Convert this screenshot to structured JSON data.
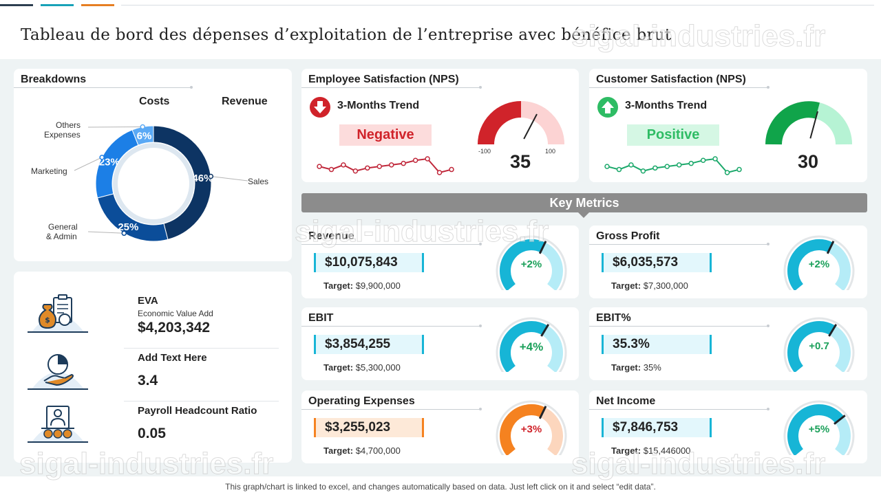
{
  "page_title": "Tableau de bord des dépenses d’exploitation de l’entreprise avec bénéfice brut",
  "colors": {
    "navy": "#1c3b5a",
    "negative": "#d0232a",
    "positive": "#1cb04b",
    "teal": "#17b5d6",
    "orange": "#f58220",
    "gray": "#8c8c8c"
  },
  "top_accent_colors": [
    "#2c3e50",
    "#17a2b8",
    "#e67e22"
  ],
  "breakdowns": {
    "title": "Breakdowns",
    "col_costs": "Costs",
    "col_revenue": "Revenue",
    "labels": {
      "others_l1": "Others",
      "others_l2": "Expenses",
      "marketing": "Marketing",
      "general_l1": "General",
      "general_l2": "& Admin",
      "sales": "Sales"
    }
  },
  "kpis": [
    {
      "label": "EVA",
      "sub": "Economic Value Add",
      "value": "$4,203,342",
      "icon": "money-bag-report-icon"
    },
    {
      "label": "Add Text Here",
      "sub": "",
      "value": "3.4",
      "icon": "hand-pie-chart-icon"
    },
    {
      "label": "Payroll Headcount Ratio",
      "sub": "",
      "value": "0.05",
      "icon": "person-coins-icon"
    }
  ],
  "employee_nps": {
    "title": "Employee Satisfaction (NPS)",
    "trend_label": "3-Months Trend",
    "trend": "Negative",
    "value": "35",
    "scale_min": "-100",
    "scale_max": "100"
  },
  "customer_nps": {
    "title": "Customer Satisfaction (NPS)",
    "trend_label": "3-Months Trend",
    "trend": "Positive",
    "value": "30"
  },
  "key_metrics_title": "Key Metrics",
  "metrics": {
    "revenue": {
      "title": "Revenue",
      "value": "$10,075,843",
      "target_label": "Target:",
      "target": "$9,900,000",
      "change": "+2%",
      "gauge_fraction": 0.6
    },
    "gross_profit": {
      "title": "Gross Profit",
      "value": "$6,035,573",
      "target_label": "Target:",
      "target": "$7,300,000",
      "change": "+2%",
      "gauge_fraction": 0.6
    },
    "ebit": {
      "title": "EBIT",
      "value": "$3,854,255",
      "target_label": "Target:",
      "target": "$5,300,000",
      "change": "+4%",
      "gauge_fraction": 0.62
    },
    "ebit_pct": {
      "title": "EBIT%",
      "value": "35.3%",
      "target_label": "Target:",
      "target": "35%",
      "change": "+0.7",
      "gauge_fraction": 0.62
    },
    "opex": {
      "title": "Operating Expenses",
      "value": "$3,255,023",
      "target_label": "Target:",
      "target": "$4,700,000",
      "change": "+3%",
      "gauge_fraction": 0.6
    },
    "net_income": {
      "title": "Net Income",
      "value": "$7,846,753",
      "target_label": "Target:",
      "target": "$15,446000",
      "change": "+5%",
      "gauge_fraction": 0.7
    }
  },
  "footnote": "This graph/chart is linked to excel, and changes automatically based on data. Just left click on it and select “edit data”.",
  "watermark": "sigal-industries.fr",
  "chart_data": [
    {
      "type": "pie",
      "categories": [
        "Sales",
        "General & Admin",
        "Marketing",
        "Others Expenses"
      ],
      "values": [
        46,
        25,
        23,
        6
      ],
      "value_labels": [
        "46%",
        "25%",
        "23%",
        "6%"
      ],
      "colors": [
        "#0d3463",
        "#0b4d99",
        "#1c7fe6",
        "#5aa9f5"
      ]
    },
    {
      "type": "line",
      "name": "employee-nps-trend",
      "x": [
        1,
        2,
        3,
        4,
        5,
        6,
        7,
        8,
        9,
        10,
        11,
        12
      ],
      "y": [
        4,
        2,
        5,
        1,
        3,
        4,
        5,
        6,
        8,
        9,
        0,
        2
      ],
      "color": "#c0273a"
    },
    {
      "type": "line",
      "name": "customer-nps-trend",
      "x": [
        1,
        2,
        3,
        4,
        5,
        6,
        7,
        8,
        9,
        10,
        11,
        12
      ],
      "y": [
        4,
        2,
        5,
        1,
        3,
        4,
        5,
        6,
        8,
        9,
        0,
        2
      ],
      "color": "#1aa86a"
    }
  ]
}
